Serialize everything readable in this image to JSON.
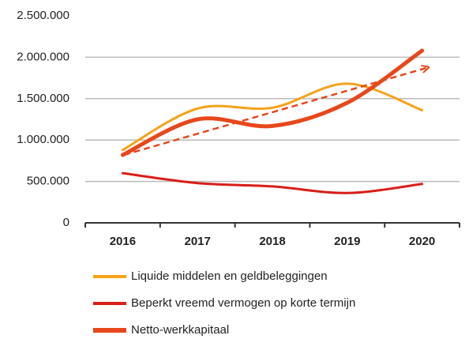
{
  "chart_data": {
    "type": "line",
    "categories": [
      "2016",
      "2017",
      "2018",
      "2019",
      "2020"
    ],
    "series": [
      {
        "name": "Liquide middelen en geldbeleggingen",
        "color": "#f5a31a",
        "width": 3,
        "values": [
          880000,
          1380000,
          1390000,
          1680000,
          1360000
        ]
      },
      {
        "name": "Beperkt vreemd vermogen op korte termijn",
        "color": "#d91e18",
        "width": 3,
        "values": [
          600000,
          480000,
          440000,
          360000,
          470000
        ]
      },
      {
        "name": "Netto-werkkapitaal",
        "color": "#e8471c",
        "width": 5,
        "values": [
          820000,
          1250000,
          1170000,
          1450000,
          2080000
        ]
      }
    ],
    "ylim": [
      0,
      2500000
    ],
    "yticks": [
      0,
      {
        "value": 500000,
        "label": "500.000"
      },
      {
        "value": 1000000,
        "label": "1.000.000"
      },
      {
        "value": 1500000,
        "label": "1.500.000"
      },
      {
        "value": 2000000,
        "label": "2.000.000"
      },
      {
        "value": 2500000,
        "label": "2.500.000"
      }
    ],
    "grid": true
  }
}
